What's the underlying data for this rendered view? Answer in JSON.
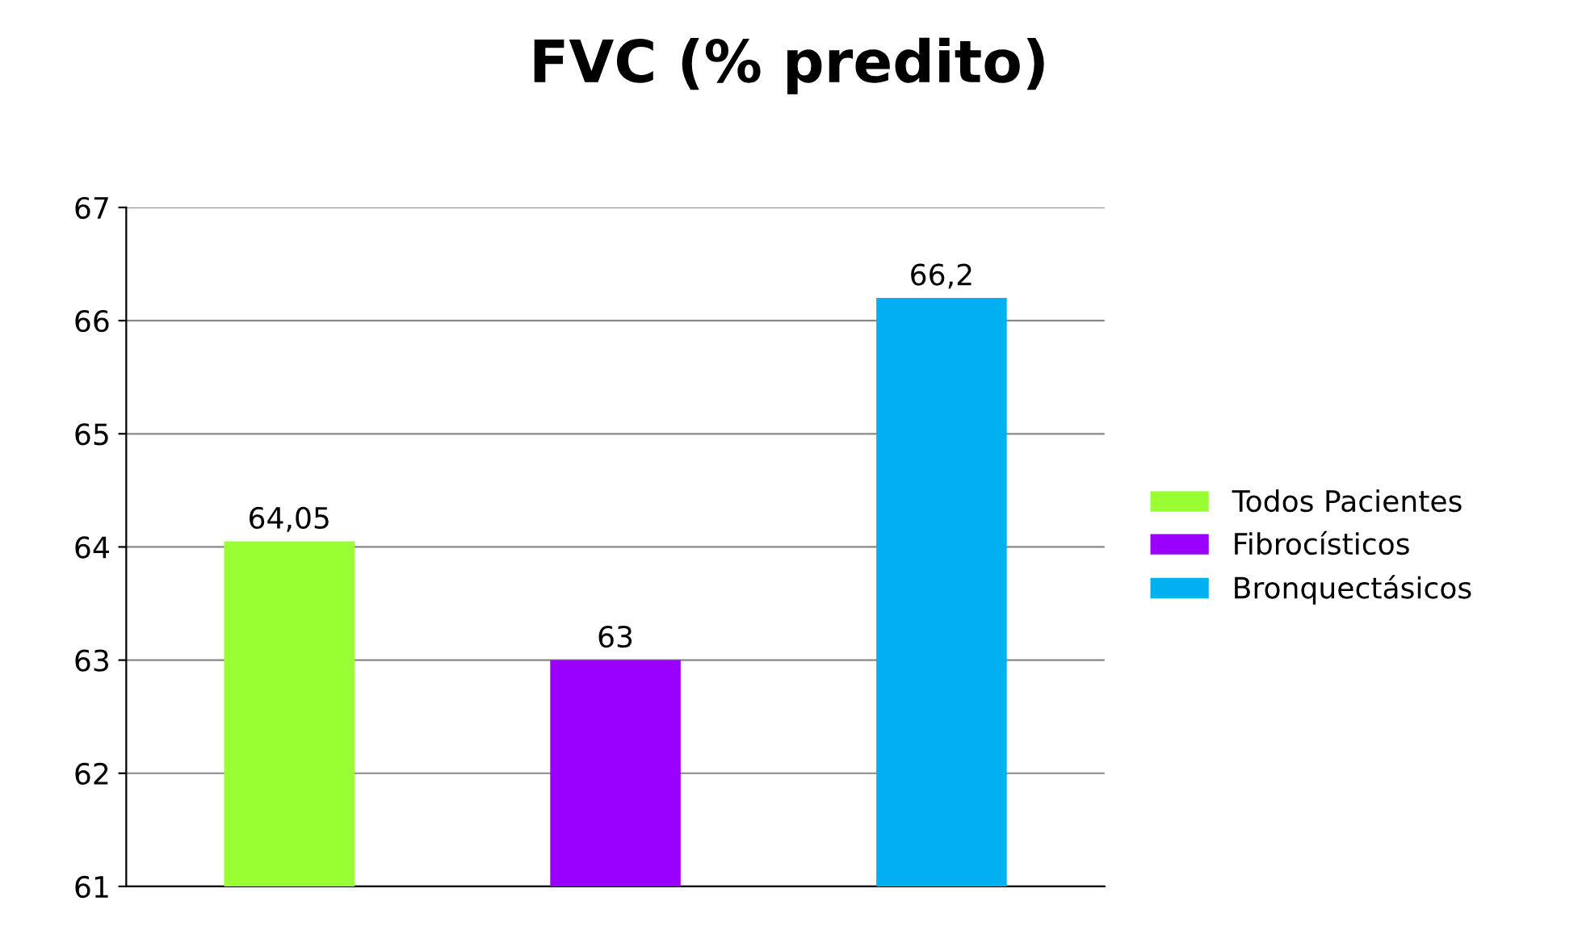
{
  "chart_data": {
    "type": "bar",
    "title": "FVC (% predito)",
    "categories": [
      null,
      null,
      null
    ],
    "series": [
      {
        "name": "Todos Pacientes",
        "color": "#99ff33",
        "values": [
          64.05,
          null,
          null
        ],
        "value_labels": [
          "64,05",
          null,
          null
        ]
      },
      {
        "name": "Fibrocísticos",
        "color": "#9900ff",
        "values": [
          null,
          63,
          null
        ],
        "value_labels": [
          null,
          "63",
          null
        ]
      },
      {
        "name": "Bronquectásicos",
        "color": "#00b0f0",
        "values": [
          null,
          null,
          66.2
        ],
        "value_labels": [
          null,
          null,
          "66,2"
        ]
      }
    ],
    "ylim": [
      61,
      67
    ],
    "yticks": [
      61,
      62,
      63,
      64,
      65,
      66,
      67
    ],
    "grid": "y",
    "legend": "right"
  }
}
